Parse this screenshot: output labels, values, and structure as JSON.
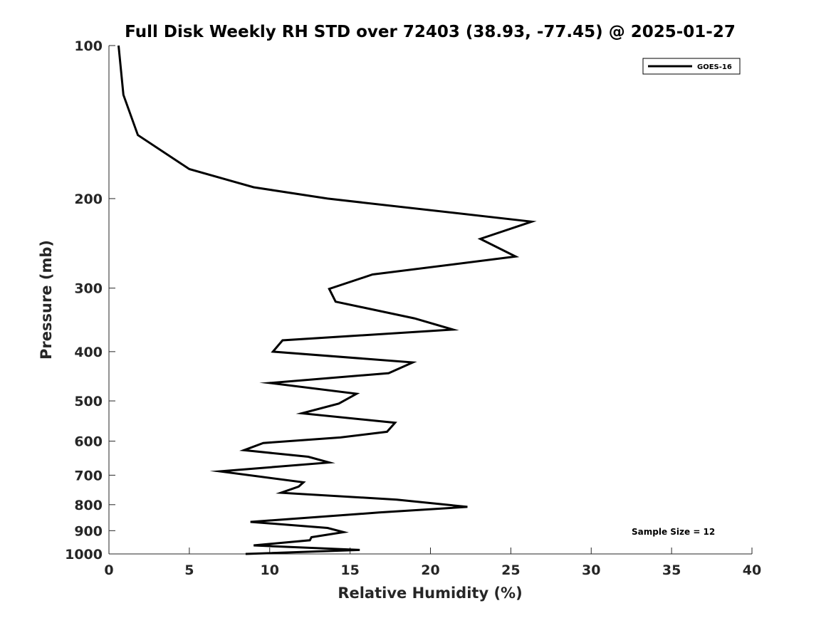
{
  "chart_data": {
    "type": "line",
    "title": "Full Disk Weekly RH STD over 72403 (38.93, -77.45) @ 2025-01-27",
    "xlabel": "Relative Humidity (%)",
    "ylabel": "Pressure (mb)",
    "xlim": [
      0,
      40
    ],
    "ylim": [
      1000,
      100
    ],
    "y_scale": "log",
    "y_reversed": true,
    "x_ticks": [
      0,
      5,
      10,
      15,
      20,
      25,
      30,
      35,
      40
    ],
    "y_ticks": [
      100,
      200,
      300,
      400,
      500,
      600,
      700,
      800,
      900,
      1000
    ],
    "grid": false,
    "legend_position": "top-right",
    "series": [
      {
        "name": "GOES-16",
        "color": "#000000",
        "points": [
          [
            0.6,
            100
          ],
          [
            0.9,
            125
          ],
          [
            1.8,
            150
          ],
          [
            5.0,
            175
          ],
          [
            9.0,
            190
          ],
          [
            13.6,
            200
          ],
          [
            26.3,
            222
          ],
          [
            23.1,
            240
          ],
          [
            25.3,
            260
          ],
          [
            16.4,
            282
          ],
          [
            13.7,
            301
          ],
          [
            14.1,
            319
          ],
          [
            19.0,
            344
          ],
          [
            21.4,
            362
          ],
          [
            10.8,
            380
          ],
          [
            10.2,
            400
          ],
          [
            18.9,
            420
          ],
          [
            17.4,
            441
          ],
          [
            10.0,
            461
          ],
          [
            15.4,
            484
          ],
          [
            14.3,
            506
          ],
          [
            12.0,
            529
          ],
          [
            17.8,
            552
          ],
          [
            17.3,
            575
          ],
          [
            14.4,
            590
          ],
          [
            9.6,
            605
          ],
          [
            8.4,
            625
          ],
          [
            12.4,
            644
          ],
          [
            13.7,
            661
          ],
          [
            6.9,
            688
          ],
          [
            12.1,
            723
          ],
          [
            11.8,
            737
          ],
          [
            10.7,
            758
          ],
          [
            17.9,
            782
          ],
          [
            22.3,
            808
          ],
          [
            16.8,
            829
          ],
          [
            8.8,
            865
          ],
          [
            13.6,
            889
          ],
          [
            14.6,
            906
          ],
          [
            12.6,
            927
          ],
          [
            12.5,
            940
          ],
          [
            9.0,
            962
          ],
          [
            15.6,
            982
          ],
          [
            8.5,
            1000
          ]
        ]
      }
    ],
    "annotations": [
      "Sample Size = 12"
    ]
  }
}
